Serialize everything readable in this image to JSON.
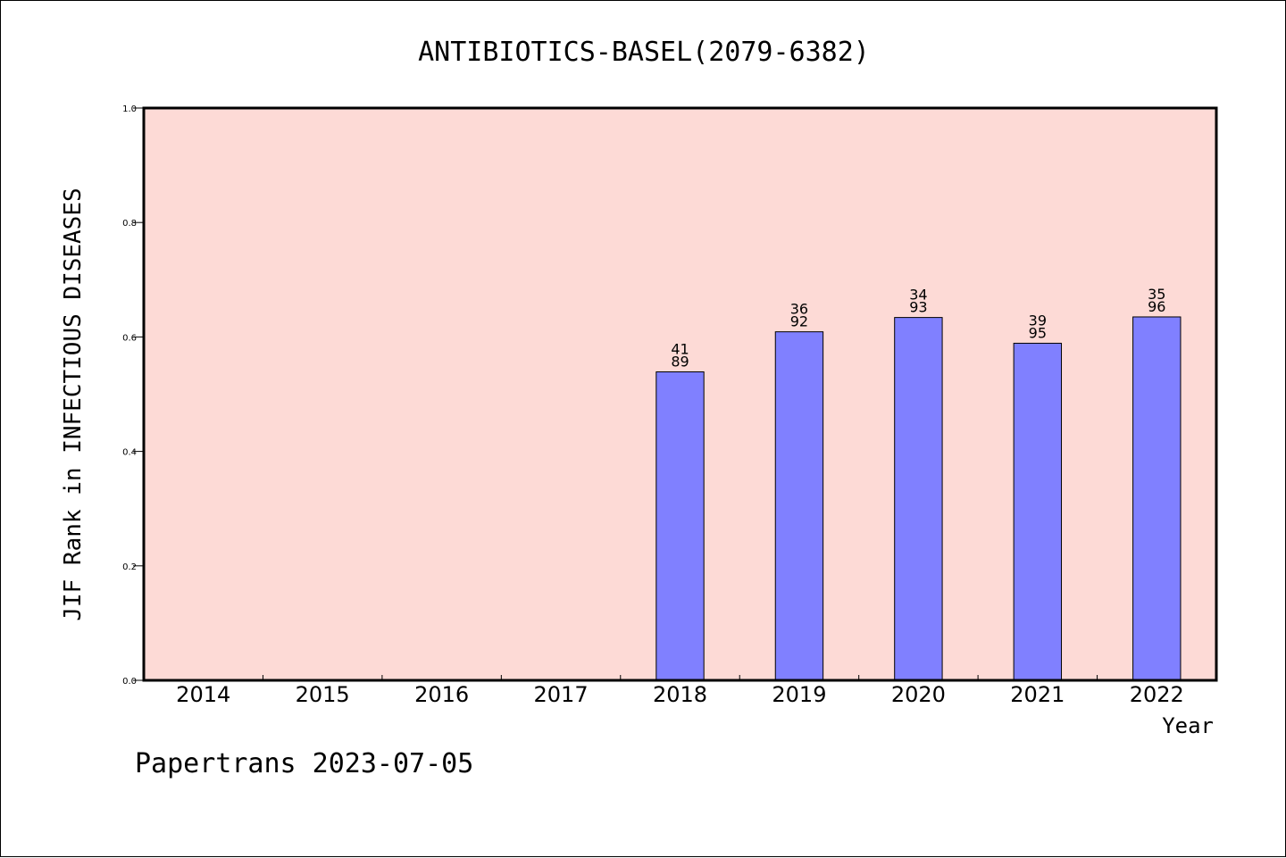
{
  "chart_data": {
    "type": "bar",
    "title": "ANTIBIOTICS-BASEL(2079-6382)",
    "xlabel": "Year",
    "ylabel": "JIF Rank in INFECTIOUS DISEASES",
    "categories": [
      "2014",
      "2015",
      "2016",
      "2017",
      "2018",
      "2019",
      "2020",
      "2021",
      "2022"
    ],
    "values": [
      null,
      null,
      null,
      null,
      0.539,
      0.609,
      0.634,
      0.589,
      0.635
    ],
    "bar_labels": [
      null,
      null,
      null,
      null,
      {
        "top": "41",
        "bottom": "89"
      },
      {
        "top": "36",
        "bottom": "92"
      },
      {
        "top": "34",
        "bottom": "93"
      },
      {
        "top": "39",
        "bottom": "95"
      },
      {
        "top": "35",
        "bottom": "96"
      }
    ],
    "ylim": [
      0,
      1
    ],
    "yticks": [
      {
        "value": 0.0,
        "label": "0.0"
      },
      {
        "value": 0.2,
        "label": "0.2"
      },
      {
        "value": 0.4,
        "label": "0.4"
      },
      {
        "value": 0.6,
        "label": "0.6"
      },
      {
        "value": 0.8,
        "label": "0.8"
      },
      {
        "value": 1.0,
        "label": "1.0"
      }
    ],
    "grid": false,
    "colors": {
      "plot_background": "#fddad6",
      "bar_fill": "#8080ff",
      "bar_stroke": "#000000"
    }
  },
  "footer": {
    "text": "Papertrans 2023-07-05"
  }
}
